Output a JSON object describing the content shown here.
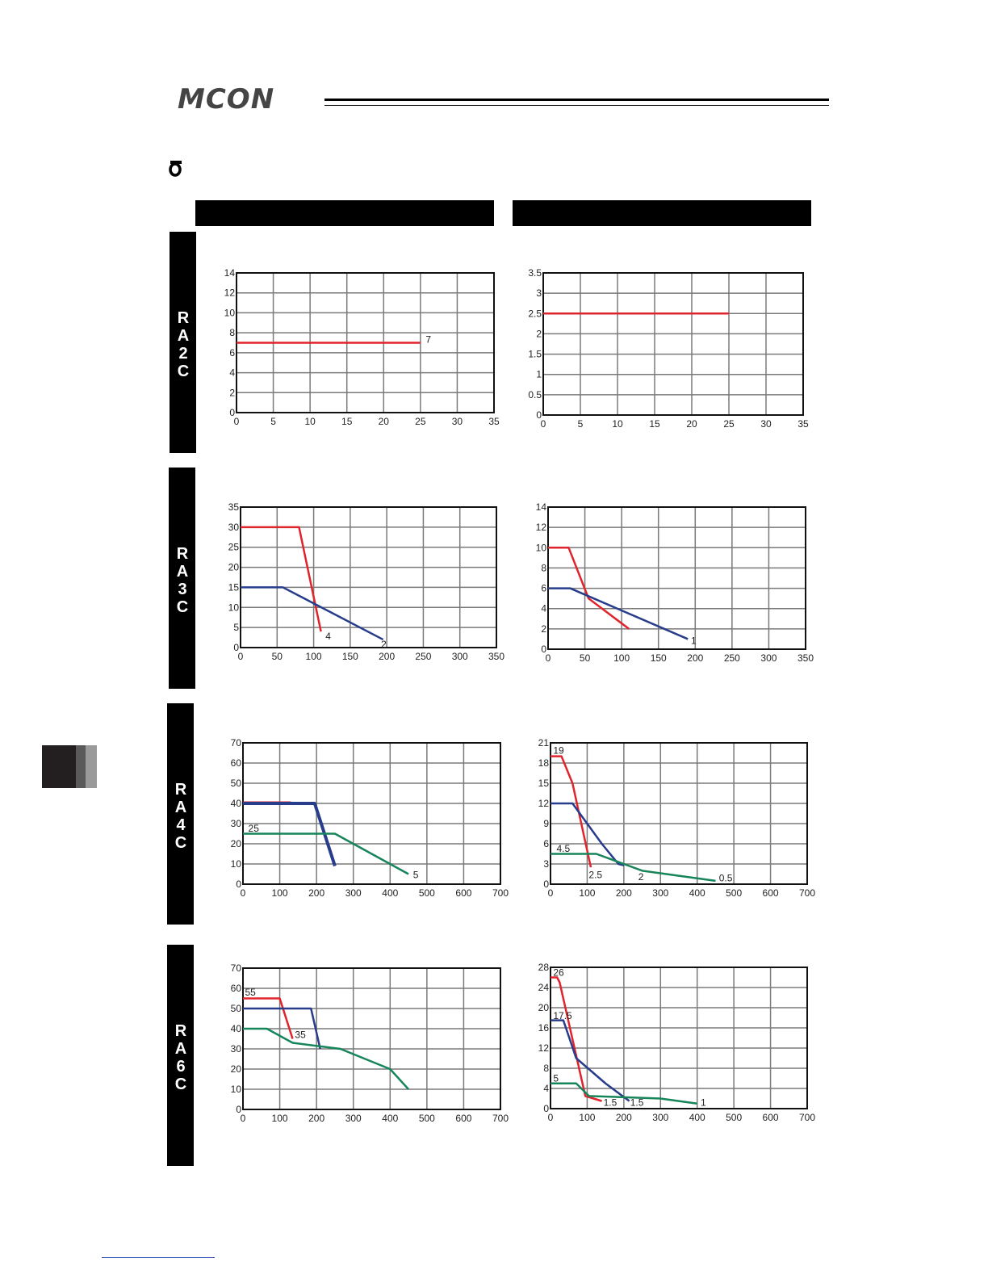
{
  "header": {
    "logo_text": "MCON"
  },
  "rows": [
    {
      "label": "RA2C"
    },
    {
      "label": "RA3C"
    },
    {
      "label": "RA4C"
    },
    {
      "label": "RA6C"
    }
  ],
  "colors": {
    "red": "#e0242c",
    "blue": "#283c8c",
    "green": "#17855a",
    "grid": "#7a7a7a"
  },
  "chart_data": [
    {
      "type": "line",
      "id": "ra2c-left",
      "xlim": [
        0,
        35
      ],
      "xstep": 5,
      "ylim": [
        0,
        14
      ],
      "ystep": 2,
      "series": [
        {
          "color": "red",
          "points": [
            [
              0,
              7
            ],
            [
              25,
              7
            ]
          ]
        }
      ],
      "labels": [
        {
          "text": "7",
          "at": [
            25.5,
            7
          ]
        }
      ]
    },
    {
      "type": "line",
      "id": "ra2c-right",
      "xlim": [
        0,
        35
      ],
      "xstep": 5,
      "ylim": [
        0,
        3.5
      ],
      "ystep": 0.5,
      "series": [
        {
          "color": "red",
          "points": [
            [
              0,
              2.5
            ],
            [
              25,
              2.5
            ]
          ]
        }
      ],
      "labels": []
    },
    {
      "type": "line",
      "id": "ra3c-left",
      "xlim": [
        0,
        350
      ],
      "xstep": 50,
      "ylim": [
        0,
        35
      ],
      "ystep": 5,
      "series": [
        {
          "color": "red",
          "points": [
            [
              0,
              30
            ],
            [
              80,
              30
            ],
            [
              110,
              4
            ]
          ]
        },
        {
          "color": "blue",
          "points": [
            [
              0,
              15
            ],
            [
              58,
              15
            ],
            [
              195,
              2
            ]
          ]
        }
      ],
      "labels": [
        {
          "text": "4",
          "at": [
            114,
            2
          ]
        },
        {
          "text": "2",
          "at": [
            190,
            0
          ]
        }
      ]
    },
    {
      "type": "line",
      "id": "ra3c-right",
      "xlim": [
        0,
        350
      ],
      "xstep": 50,
      "ylim": [
        0,
        14
      ],
      "ystep": 2,
      "series": [
        {
          "color": "red",
          "points": [
            [
              0,
              10
            ],
            [
              28,
              10
            ],
            [
              55,
              5
            ],
            [
              110,
              2
            ]
          ]
        },
        {
          "color": "blue",
          "points": [
            [
              0,
              6
            ],
            [
              30,
              6
            ],
            [
              190,
              1
            ]
          ]
        }
      ],
      "labels": [
        {
          "text": "1",
          "at": [
            192,
            0.5
          ]
        }
      ]
    },
    {
      "type": "line",
      "id": "ra4c-left",
      "xlim": [
        0,
        700
      ],
      "xstep": 100,
      "ylim": [
        0,
        70
      ],
      "ystep": 10,
      "series": [
        {
          "color": "red",
          "points": [
            [
              0,
              40.5
            ],
            [
              130,
              40.5
            ]
          ]
        },
        {
          "color": "blue",
          "width": 4,
          "points": [
            [
              0,
              40
            ],
            [
              195,
              40
            ],
            [
              250,
              9
            ]
          ]
        },
        {
          "color": "green",
          "points": [
            [
              0,
              25
            ],
            [
              250,
              25
            ],
            [
              450,
              5
            ]
          ]
        }
      ],
      "labels": [
        {
          "text": "25",
          "at": [
            10,
            26
          ]
        },
        {
          "text": "5",
          "at": [
            458,
            3
          ]
        }
      ]
    },
    {
      "type": "line",
      "id": "ra4c-right",
      "xlim": [
        0,
        700
      ],
      "xstep": 100,
      "ylim": [
        0,
        21
      ],
      "ystep": 3,
      "series": [
        {
          "color": "red",
          "points": [
            [
              0,
              19
            ],
            [
              30,
              19
            ],
            [
              60,
              15
            ],
            [
              110,
              2.5
            ]
          ]
        },
        {
          "color": "blue",
          "points": [
            [
              0,
              12
            ],
            [
              60,
              12
            ],
            [
              100,
              9
            ],
            [
              140,
              6
            ],
            [
              185,
              3
            ],
            [
              200,
              2.8
            ]
          ]
        },
        {
          "color": "green",
          "points": [
            [
              0,
              4.5
            ],
            [
              125,
              4.5
            ],
            [
              200,
              3
            ],
            [
              250,
              2
            ],
            [
              450,
              0.5
            ]
          ]
        }
      ],
      "labels": [
        {
          "text": "19",
          "at": [
            3,
            19.4
          ]
        },
        {
          "text": "4.5",
          "at": [
            12,
            4.8
          ]
        },
        {
          "text": "2.5",
          "at": [
            100,
            0.9
          ]
        },
        {
          "text": "2",
          "at": [
            235,
            0.6
          ]
        },
        {
          "text": "0.5",
          "at": [
            455,
            0.4
          ]
        }
      ]
    },
    {
      "type": "line",
      "id": "ra6c-left",
      "xlim": [
        0,
        700
      ],
      "xstep": 100,
      "ylim": [
        0,
        70
      ],
      "ystep": 10,
      "series": [
        {
          "color": "red",
          "points": [
            [
              0,
              55
            ],
            [
              100,
              55
            ],
            [
              135,
              35
            ]
          ]
        },
        {
          "color": "blue",
          "points": [
            [
              0,
              50
            ],
            [
              185,
              50
            ],
            [
              210,
              30
            ]
          ]
        },
        {
          "color": "green",
          "points": [
            [
              0,
              40
            ],
            [
              65,
              40
            ],
            [
              135,
              33
            ],
            [
              265,
              30
            ],
            [
              400,
              20
            ],
            [
              450,
              10
            ]
          ]
        }
      ],
      "labels": [
        {
          "text": "55",
          "at": [
            1,
            56.5
          ]
        },
        {
          "text": "35",
          "at": [
            137,
            35.5
          ]
        }
      ]
    },
    {
      "type": "line",
      "id": "ra6c-right",
      "xlim": [
        0,
        700
      ],
      "xstep": 100,
      "ylim": [
        0,
        28
      ],
      "ystep": 4,
      "series": [
        {
          "color": "red",
          "points": [
            [
              0,
              26
            ],
            [
              18,
              26
            ],
            [
              25,
              25
            ],
            [
              95,
              2.5
            ],
            [
              140,
              1.5
            ]
          ]
        },
        {
          "color": "blue",
          "points": [
            [
              0,
              17.5
            ],
            [
              35,
              17.5
            ],
            [
              70,
              10
            ],
            [
              150,
              5
            ],
            [
              215,
              1.5
            ]
          ]
        },
        {
          "color": "green",
          "points": [
            [
              0,
              5
            ],
            [
              70,
              5
            ],
            [
              105,
              2.5
            ],
            [
              300,
              2
            ],
            [
              400,
              1
            ]
          ]
        }
      ],
      "labels": [
        {
          "text": "26",
          "at": [
            3,
            26.3
          ]
        },
        {
          "text": "17.5",
          "at": [
            3,
            17.8
          ]
        },
        {
          "text": "5",
          "at": [
            3,
            5.4
          ]
        },
        {
          "text": "1.5",
          "at": [
            140,
            0.6
          ]
        },
        {
          "text": "1.5",
          "at": [
            213,
            0.6
          ]
        },
        {
          "text": "1",
          "at": [
            405,
            0.6
          ]
        }
      ]
    }
  ]
}
